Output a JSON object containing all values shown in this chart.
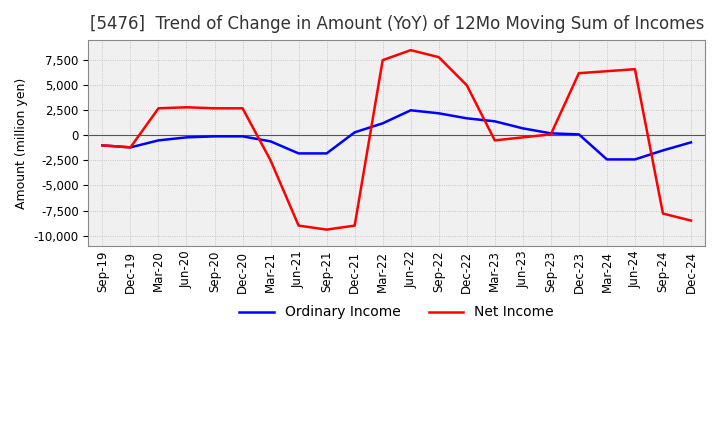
{
  "title": "[5476]  Trend of Change in Amount (YoY) of 12Mo Moving Sum of Incomes",
  "ylabel": "Amount (million yen)",
  "ylim": [
    -11000,
    9500
  ],
  "yticks": [
    -10000,
    -7500,
    -5000,
    -2500,
    0,
    2500,
    5000,
    7500
  ],
  "x_labels": [
    "Sep-19",
    "Dec-19",
    "Mar-20",
    "Jun-20",
    "Sep-20",
    "Dec-20",
    "Mar-21",
    "Jun-21",
    "Sep-21",
    "Dec-21",
    "Mar-22",
    "Jun-22",
    "Sep-22",
    "Dec-22",
    "Mar-23",
    "Jun-23",
    "Sep-23",
    "Dec-23",
    "Mar-24",
    "Jun-24",
    "Sep-24",
    "Dec-24"
  ],
  "ordinary_income": [
    -1000,
    -1200,
    -500,
    -200,
    -100,
    -100,
    -600,
    -1800,
    -1800,
    300,
    1200,
    2500,
    2200,
    1700,
    1400,
    700,
    200,
    100,
    -2400,
    -2400,
    -1500,
    -700
  ],
  "net_income": [
    -1000,
    -1200,
    2700,
    2800,
    2700,
    2700,
    -2500,
    -9000,
    -9400,
    -9000,
    7500,
    8500,
    7800,
    5000,
    -500,
    -200,
    100,
    6200,
    6400,
    6600,
    -7800,
    -8500
  ],
  "ordinary_color": "#0000ff",
  "net_color": "#ff0000",
  "background_color": "#ffffff",
  "plot_bg_color": "#f0f0f0",
  "grid_color": "#bbbbbb",
  "title_fontsize": 12,
  "label_fontsize": 9,
  "tick_fontsize": 8.5,
  "legend_fontsize": 10
}
